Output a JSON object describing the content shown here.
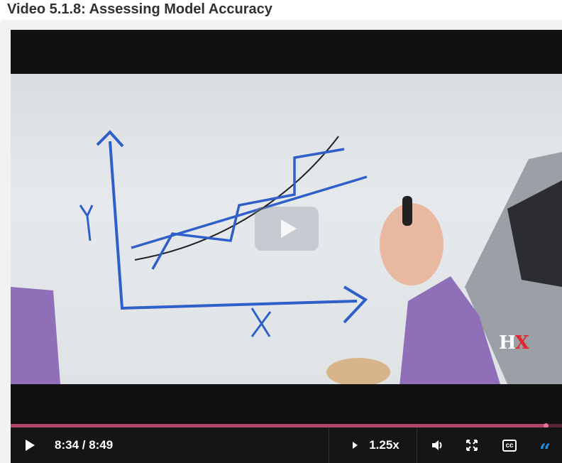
{
  "page": {
    "title": "Video 5.1.8: Assessing Model Accuracy"
  },
  "player": {
    "progress_fraction": 0.971,
    "time_display": "8:34 / 8:49",
    "speed_label": "1.25x",
    "captions_label": "cc",
    "logo": {
      "h": "H",
      "x": "X"
    },
    "colors": {
      "progress_played": "#b4456a",
      "progress_track": "#5a2536",
      "accent": "#1e90e8"
    },
    "icons": [
      "play-icon",
      "big-play-icon",
      "speed-arrow-icon",
      "volume-icon",
      "fullscreen-icon",
      "closed-captions-icon",
      "transcript-quote-icon"
    ]
  }
}
